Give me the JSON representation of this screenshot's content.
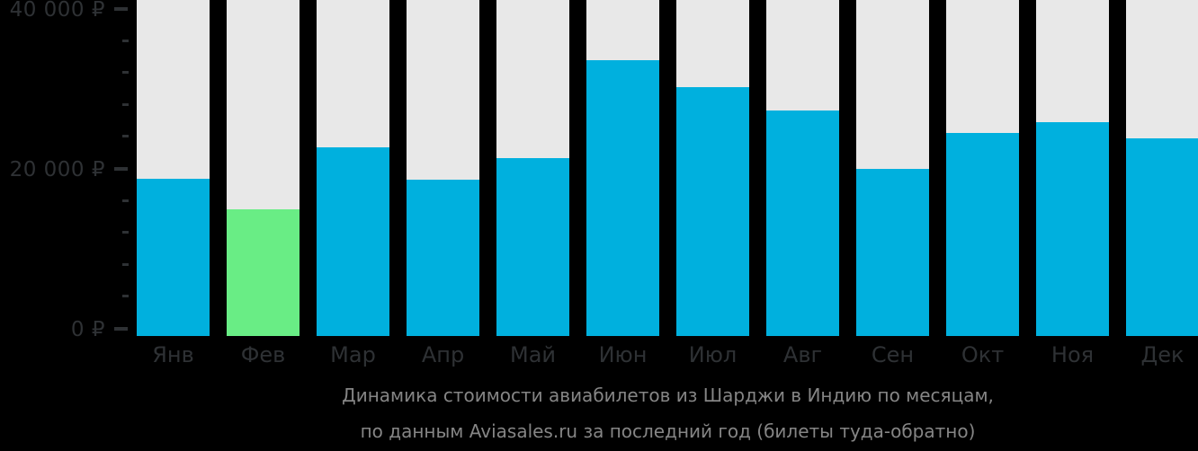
{
  "chart_data": {
    "type": "bar",
    "title": "Динамика стоимости авиабилетов из Шарджи в Индию по месяцам,",
    "subtitle": "по данным Aviasales.ru за последний год (билеты туда-обратно)",
    "categories": [
      "Янв",
      "Фев",
      "Мар",
      "Апр",
      "Май",
      "Июн",
      "Июл",
      "Авг",
      "Сен",
      "Окт",
      "Ноя",
      "Дек"
    ],
    "values": [
      18700,
      14900,
      22600,
      18600,
      21300,
      33500,
      30200,
      27200,
      20000,
      24400,
      25800,
      23800
    ],
    "min_index": 1,
    "currency": "₽",
    "xlabel": "",
    "ylabel": "",
    "ylim": [
      0,
      40000
    ],
    "grid": "off",
    "legend": "none",
    "y_axis": {
      "tick_step": 4000,
      "major_step": 20000,
      "max": 40000,
      "label_items": [
        {
          "value": 0,
          "label": "0 ₽"
        },
        {
          "value": 20000,
          "label": "20 000 ₽"
        },
        {
          "value": 40000,
          "label": "40 000 ₽"
        }
      ]
    },
    "colors": {
      "bar": "#00b0de",
      "min_bar": "#69ed85",
      "track": "#e8e8e8",
      "background": "#000000",
      "axis_text": "#2e3134",
      "caption_text": "#858585"
    }
  }
}
